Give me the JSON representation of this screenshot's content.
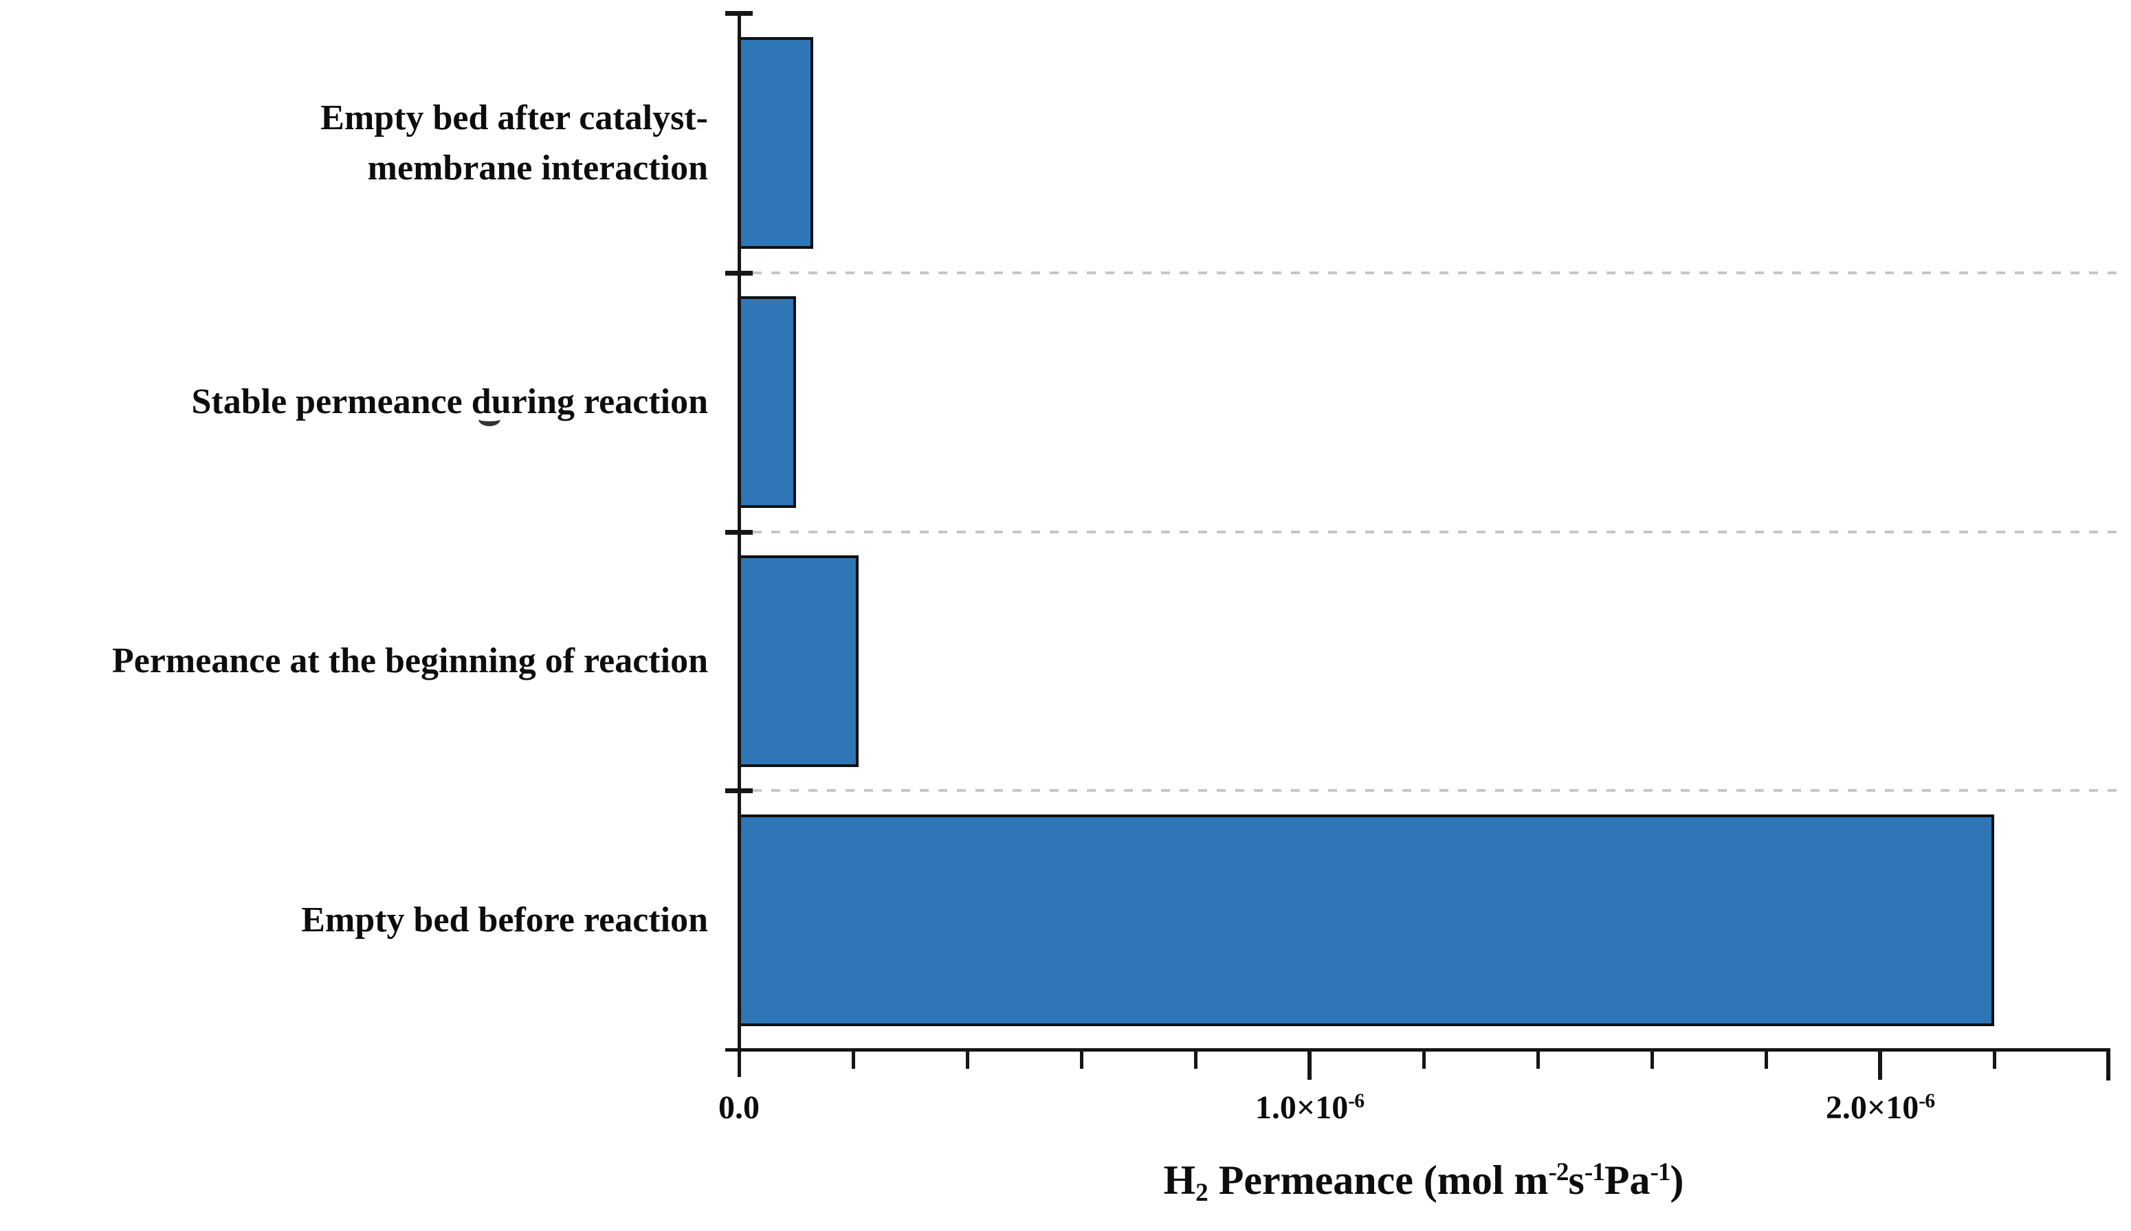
{
  "figure": {
    "background": "#ffffff",
    "description": "Horizontal bar chart of H2 permeance for four membrane/bed conditions"
  },
  "chart_data": {
    "type": "bar",
    "orientation": "horizontal",
    "title": "",
    "categories": [
      "Empty bed after catalyst-membrane interaction",
      "Stable permeance during reaction",
      "Permeance at the beginning of reaction",
      "Empty bed before reaction"
    ],
    "category_lines": [
      [
        "Empty bed after catalyst-",
        "membrane interaction"
      ],
      [
        "Stable permeance during reaction"
      ],
      [
        "Permeance at the beginning of reaction"
      ],
      [
        "Empty bed before reaction"
      ]
    ],
    "values": [
      1.3e-07,
      1e-07,
      2.1e-07,
      2.2e-06
    ],
    "values_display": [
      "0.13×10⁻⁶",
      "0.10×10⁻⁶",
      "0.21×10⁻⁶",
      "2.2×10⁻⁶"
    ],
    "xlabel_plain": "H2 Permeance (mol m-2 s-1 Pa-1)",
    "xlabel_segments": [
      {
        "t": "H"
      },
      {
        "sub": "2"
      },
      {
        "t": " Permeance (mol m"
      },
      {
        "sup": "-2"
      },
      {
        "t": "s"
      },
      {
        "sup": "-1"
      },
      {
        "t": "Pa"
      },
      {
        "sup": "-1"
      },
      {
        "t": ")"
      }
    ],
    "ylabel": "",
    "xlim": [
      0,
      2.4e-06
    ],
    "x_major_ticks": [
      {
        "value": 0,
        "base": "0.0",
        "exp": ""
      },
      {
        "value": 1e-06,
        "base": "1.0×10",
        "exp": "-6"
      },
      {
        "value": 2e-06,
        "base": "2.0×10",
        "exp": "-6"
      }
    ],
    "x_minor_step": 2e-07,
    "grid": "dashed horizontal separators between category bands",
    "legend": "none",
    "colors": {
      "bar_fill": "#2E76B6",
      "bar_edge": "#101010",
      "axis": "#161616",
      "grid": "#c6c6c6",
      "text": "#0d0d0d"
    }
  }
}
